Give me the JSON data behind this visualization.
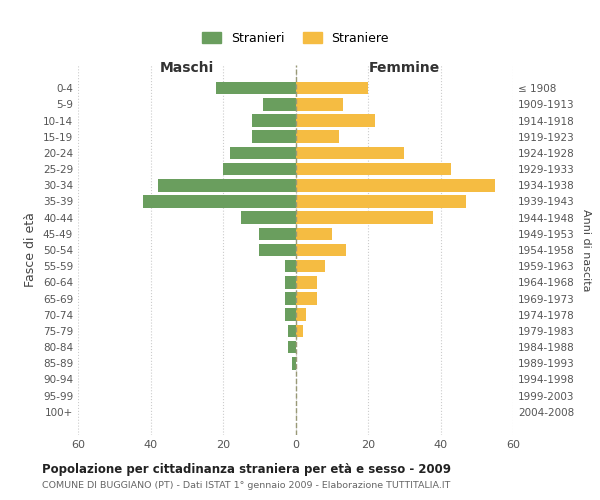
{
  "age_groups": [
    "0-4",
    "5-9",
    "10-14",
    "15-19",
    "20-24",
    "25-29",
    "30-34",
    "35-39",
    "40-44",
    "45-49",
    "50-54",
    "55-59",
    "60-64",
    "65-69",
    "70-74",
    "75-79",
    "80-84",
    "85-89",
    "90-94",
    "95-99",
    "100+"
  ],
  "birth_years": [
    "2004-2008",
    "1999-2003",
    "1994-1998",
    "1989-1993",
    "1984-1988",
    "1979-1983",
    "1974-1978",
    "1969-1973",
    "1964-1968",
    "1959-1963",
    "1954-1958",
    "1949-1953",
    "1944-1948",
    "1939-1943",
    "1934-1938",
    "1929-1933",
    "1924-1928",
    "1919-1923",
    "1914-1918",
    "1909-1913",
    "≤ 1908"
  ],
  "maschi": [
    22,
    9,
    12,
    12,
    18,
    20,
    38,
    42,
    15,
    10,
    10,
    3,
    3,
    3,
    3,
    2,
    2,
    1,
    0,
    0,
    0
  ],
  "femmine": [
    20,
    13,
    22,
    12,
    30,
    43,
    55,
    47,
    38,
    10,
    14,
    8,
    6,
    6,
    3,
    2,
    0,
    0,
    0,
    0,
    0
  ],
  "color_maschi": "#6a9e5e",
  "color_femmine": "#f5bc42",
  "title": "Popolazione per cittadinanza straniera per età e sesso - 2009",
  "subtitle": "COMUNE DI BUGGIANO (PT) - Dati ISTAT 1° gennaio 2009 - Elaborazione TUTTITALIA.IT",
  "ylabel_left": "Fasce di età",
  "ylabel_right": "Anni di nascita",
  "label_maschi": "Maschi",
  "label_femmine": "Femmine",
  "legend_maschi": "Stranieri",
  "legend_femmine": "Straniere",
  "xlim": 60,
  "background_color": "#ffffff",
  "grid_color": "#cccccc"
}
